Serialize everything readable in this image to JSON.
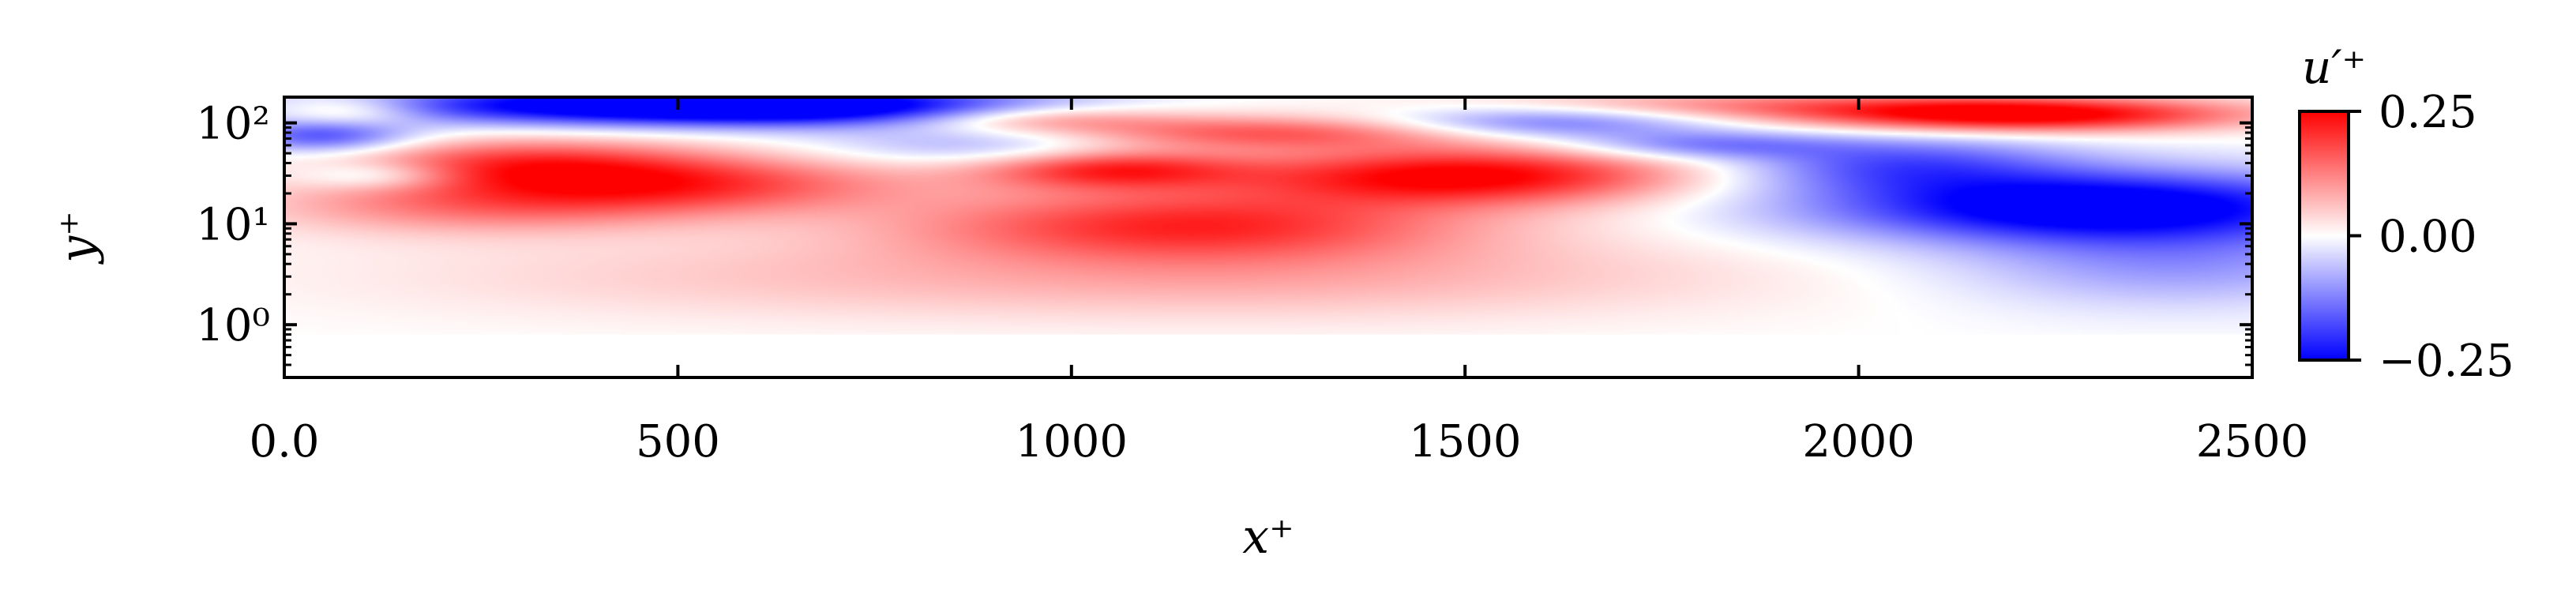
{
  "chart_data": {
    "type": "heatmap",
    "title": "",
    "xlabel": "x⁺",
    "ylabel": "y⁺",
    "xlim": [
      0,
      2500
    ],
    "ylim": [
      0.3,
      180
    ],
    "yscale": "log",
    "x_ticks": [
      0,
      500,
      1000,
      1500,
      2000,
      2500
    ],
    "x_tick_labels": [
      "0.0",
      "500",
      "1000",
      "1500",
      "2000",
      "2500"
    ],
    "y_ticks": [
      1,
      10,
      100
    ],
    "y_tick_labels": [
      "10⁰",
      "10¹",
      "10²"
    ],
    "field_y_range": [
      0.8,
      180
    ],
    "colorbar": {
      "label": "u′⁺",
      "vmin": -0.25,
      "vmax": 0.25,
      "ticks": [
        0.25,
        0.0,
        -0.25
      ],
      "tick_labels": [
        "0.25",
        "0.00",
        "−0.25"
      ],
      "colormap": "bwr",
      "low_color": "#0000ff",
      "mid_color": "#ffffff",
      "high_color": "#ff0000"
    },
    "structures": [
      {
        "x": 80,
        "y": 130,
        "sx": 70,
        "sy": 0.12,
        "amp": 0.12
      },
      {
        "x": 400,
        "y": 150,
        "sx": 250,
        "sy": 0.14,
        "amp": -0.26
      },
      {
        "x": 700,
        "y": 145,
        "sx": 200,
        "sy": 0.14,
        "amp": -0.22
      },
      {
        "x": 50,
        "y": 75,
        "sx": 80,
        "sy": 0.12,
        "amp": -0.18
      },
      {
        "x": 120,
        "y": 30,
        "sx": 70,
        "sy": 0.1,
        "amp": -0.1
      },
      {
        "x": 300,
        "y": 40,
        "sx": 160,
        "sy": 0.18,
        "amp": 0.16
      },
      {
        "x": 500,
        "y": 25,
        "sx": 200,
        "sy": 0.2,
        "amp": 0.18
      },
      {
        "x": 250,
        "y": 15,
        "sx": 200,
        "sy": 0.2,
        "amp": 0.12
      },
      {
        "x": 900,
        "y": 60,
        "sx": 150,
        "sy": 0.14,
        "amp": -0.09
      },
      {
        "x": 950,
        "y": 110,
        "sx": 120,
        "sy": 0.1,
        "amp": 0.12
      },
      {
        "x": 1050,
        "y": 35,
        "sx": 120,
        "sy": 0.14,
        "amp": 0.2
      },
      {
        "x": 1150,
        "y": 10,
        "sx": 250,
        "sy": 0.25,
        "amp": 0.2
      },
      {
        "x": 1250,
        "y": 80,
        "sx": 200,
        "sy": 0.12,
        "amp": 0.16
      },
      {
        "x": 1500,
        "y": 30,
        "sx": 200,
        "sy": 0.2,
        "amp": 0.26
      },
      {
        "x": 1600,
        "y": 100,
        "sx": 150,
        "sy": 0.12,
        "amp": -0.15
      },
      {
        "x": 1800,
        "y": 60,
        "sx": 120,
        "sy": 0.1,
        "amp": -0.12
      },
      {
        "x": 1850,
        "y": 150,
        "sx": 250,
        "sy": 0.1,
        "amp": 0.1
      },
      {
        "x": 2200,
        "y": 120,
        "sx": 200,
        "sy": 0.12,
        "amp": 0.28
      },
      {
        "x": 2300,
        "y": 15,
        "sx": 250,
        "sy": 0.25,
        "amp": -0.3
      },
      {
        "x": 2050,
        "y": 40,
        "sx": 150,
        "sy": 0.2,
        "amp": -0.15
      },
      {
        "x": 2400,
        "y": 4,
        "sx": 200,
        "sy": 0.3,
        "amp": -0.1
      },
      {
        "x": 1300,
        "y": 3,
        "sx": 400,
        "sy": 0.3,
        "amp": 0.07
      },
      {
        "x": 600,
        "y": 3,
        "sx": 400,
        "sy": 0.3,
        "amp": 0.04
      }
    ]
  }
}
